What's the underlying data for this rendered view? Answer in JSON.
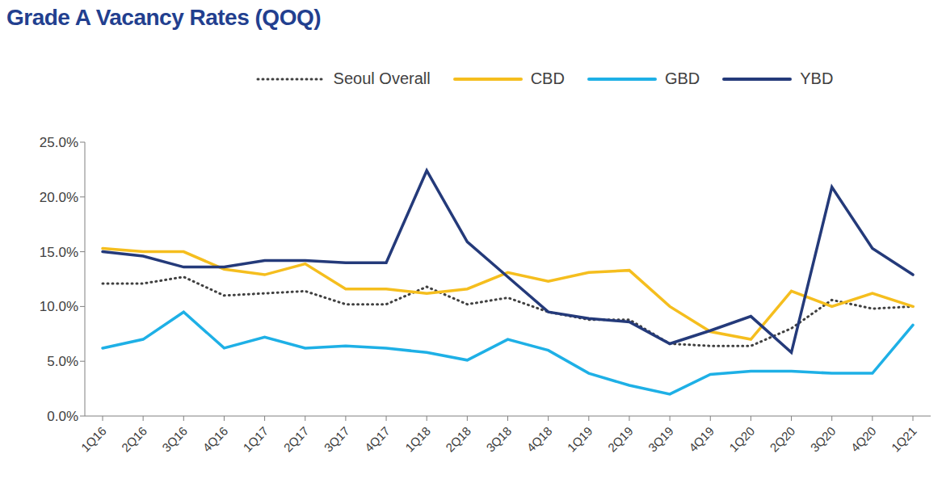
{
  "chart_data": {
    "type": "line",
    "title": "Grade A Vacancy Rates (QOQ)",
    "categories": [
      "1Q16",
      "2Q16",
      "3Q16",
      "4Q16",
      "1Q17",
      "2Q17",
      "3Q17",
      "4Q17",
      "1Q18",
      "2Q18",
      "3Q18",
      "4Q18",
      "1Q19",
      "2Q19",
      "3Q19",
      "4Q19",
      "1Q20",
      "2Q20",
      "3Q20",
      "4Q20",
      "1Q21"
    ],
    "series": [
      {
        "name": "Seoul Overall",
        "color": "#404040",
        "line_style": "dotted",
        "values": [
          12.1,
          12.1,
          12.7,
          11.0,
          11.2,
          11.4,
          10.2,
          10.2,
          11.8,
          10.2,
          10.8,
          9.5,
          8.8,
          8.8,
          6.6,
          6.4,
          6.4,
          8.0,
          10.6,
          9.8,
          10.0
        ]
      },
      {
        "name": "CBD",
        "color": "#F5BE1E",
        "line_style": "solid",
        "values": [
          15.3,
          15.0,
          15.0,
          13.4,
          12.9,
          13.9,
          11.6,
          11.6,
          11.2,
          11.6,
          13.1,
          12.3,
          13.1,
          13.3,
          10.0,
          7.7,
          7.0,
          11.4,
          10.0,
          11.2,
          10.0
        ]
      },
      {
        "name": "GBD",
        "color": "#1EB0E6",
        "line_style": "solid",
        "values": [
          6.2,
          7.0,
          9.5,
          6.2,
          7.2,
          6.2,
          6.4,
          6.2,
          5.8,
          5.1,
          7.0,
          6.0,
          3.9,
          2.8,
          2.0,
          3.8,
          4.1,
          4.1,
          3.9,
          3.9,
          8.3
        ]
      },
      {
        "name": "YBD",
        "color": "#243A7A",
        "line_style": "solid",
        "values": [
          15.0,
          14.6,
          13.6,
          13.6,
          14.2,
          14.2,
          14.0,
          14.0,
          22.4,
          15.9,
          12.7,
          9.5,
          8.9,
          8.6,
          6.6,
          7.8,
          9.1,
          5.8,
          20.9,
          15.3,
          12.9
        ]
      }
    ],
    "ylim": [
      0,
      25
    ],
    "yticks": [
      {
        "value": 0,
        "label": "0.0%"
      },
      {
        "value": 5,
        "label": "5.0%"
      },
      {
        "value": 10,
        "label": "10.0%"
      },
      {
        "value": 15,
        "label": "15.0%"
      },
      {
        "value": 20,
        "label": "20.0%"
      },
      {
        "value": 25,
        "label": "25.0%"
      }
    ],
    "grid": false,
    "legend": "top"
  }
}
